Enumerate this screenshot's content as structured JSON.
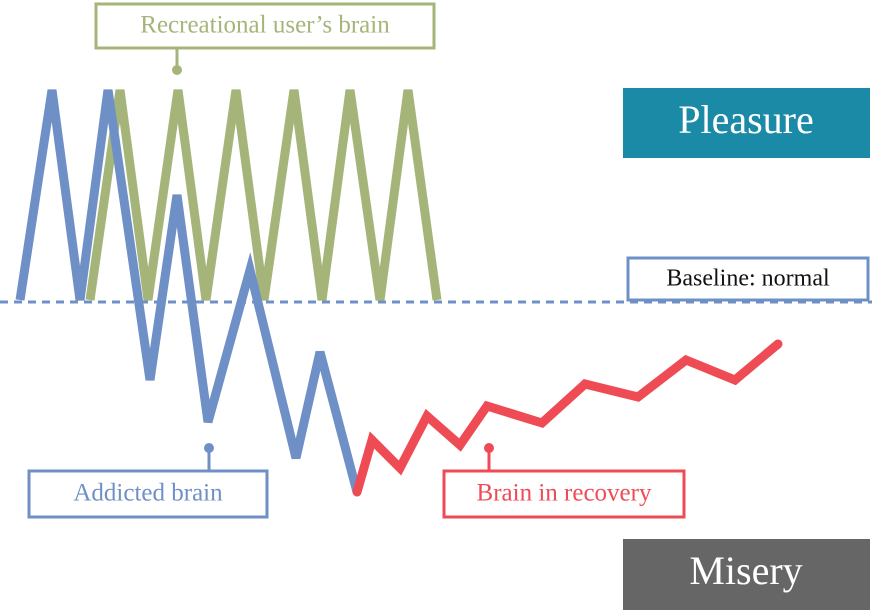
{
  "labels": {
    "recreational": "Recreational user’s brain",
    "pleasure": "Pleasure",
    "baseline": "Baseline: normal",
    "addicted": "Addicted brain",
    "recovery": "Brain in recovery",
    "misery": "Misery"
  }
}
